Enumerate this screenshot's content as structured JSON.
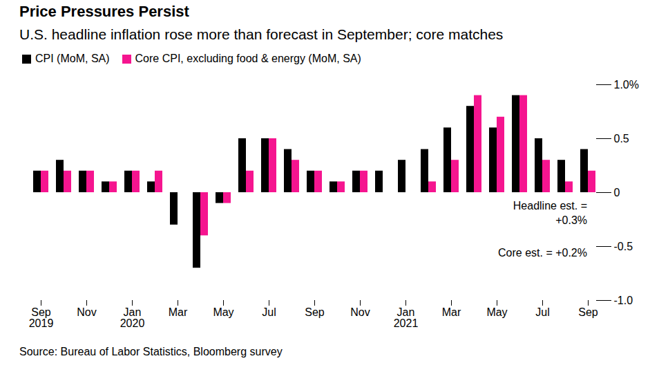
{
  "chart_data": {
    "type": "bar",
    "title": "Price Pressures Persist",
    "subtitle": "U.S. headline inflation rose more than forecast in September; core matches",
    "caption": "Source: Bureau of Labor Statistics, Bloomberg survey",
    "annotations": [
      "Headline est. =\n+0.3%",
      "Core est. = +0.2%"
    ],
    "categories": [
      "Sep\n2019",
      null,
      "Nov",
      null,
      "Jan\n2020",
      null,
      "Mar",
      null,
      "May",
      null,
      "Jul",
      null,
      "Sep",
      null,
      "Nov",
      null,
      "Jan\n2021",
      null,
      "Mar",
      null,
      "May",
      null,
      "Jul",
      null,
      "Sep"
    ],
    "series": [
      {
        "name": "CPI (MoM, SA)",
        "color": "#000000",
        "values": [
          0.2,
          0.3,
          0.2,
          0.1,
          0.2,
          0.1,
          -0.3,
          -0.7,
          -0.1,
          0.5,
          0.5,
          0.4,
          0.2,
          0.1,
          0.2,
          0.2,
          0.3,
          0.4,
          0.6,
          0.8,
          0.6,
          0.9,
          0.5,
          0.3,
          0.4
        ]
      },
      {
        "name": "Core CPI, excluding food & energy (MoM, SA)",
        "color": "#f5158f",
        "values": [
          0.2,
          0.2,
          0.2,
          0.1,
          0.2,
          0.2,
          0,
          -0.4,
          -0.1,
          0.2,
          0.5,
          0.3,
          0.2,
          0.1,
          0.2,
          0,
          0,
          0.1,
          0.3,
          0.9,
          0.7,
          0.9,
          0.3,
          0.1,
          0.2
        ]
      }
    ],
    "ylim": [
      -1,
      1
    ],
    "yticks": [
      {
        "value": -1,
        "label": "-1.0"
      },
      -0.5,
      0,
      0.5,
      {
        "value": 1,
        "label": "1.0%"
      }
    ],
    "legend": "top-left",
    "grid": false
  }
}
